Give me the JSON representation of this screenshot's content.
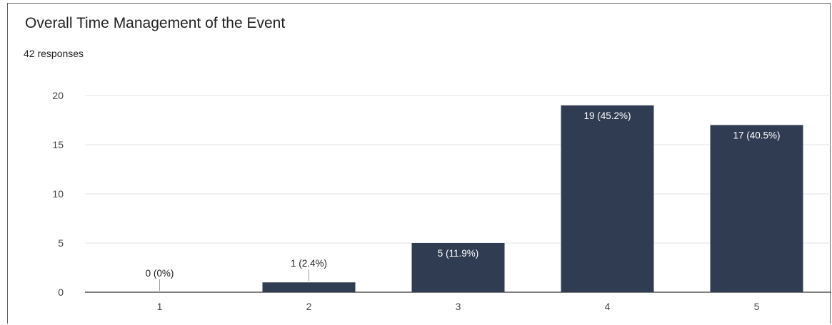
{
  "header": {
    "title": "Overall Time Management of the Event",
    "responses": "42 responses"
  },
  "colors": {
    "bar": "#2f3c52",
    "grid": "#e3e3e3",
    "axis": "#333333",
    "label_inside": "#ffffff",
    "label_outside": "#202124"
  },
  "chart_data": {
    "type": "bar",
    "categories": [
      "1",
      "2",
      "3",
      "4",
      "5"
    ],
    "values": [
      0,
      1,
      5,
      19,
      17
    ],
    "data_labels": [
      "0 (0%)",
      "1 (2.4%)",
      "5 (11.9%)",
      "19 (45.2%)",
      "17 (40.5%)"
    ],
    "title": "Overall Time Management of the Event",
    "subtitle": "42 responses",
    "xlabel": "",
    "ylabel": "",
    "ylim": [
      0,
      20
    ],
    "yticks": [
      0,
      5,
      10,
      15,
      20
    ],
    "grid": true,
    "legend": "none"
  }
}
